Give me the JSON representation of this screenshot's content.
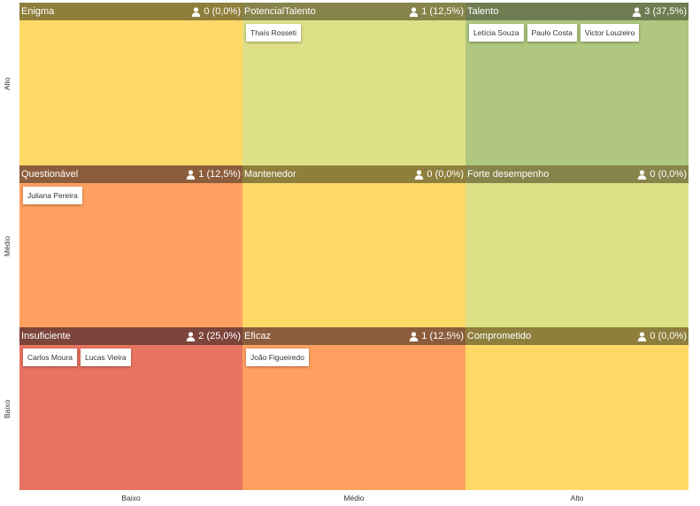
{
  "axes": {
    "y_labels": [
      "Alto",
      "Médio",
      "Baixo"
    ],
    "x_labels": [
      "Baixo",
      "Médio",
      "Alto"
    ]
  },
  "cells": [
    {
      "title": "Enigma",
      "count": "0 (0,0%)",
      "header_color": "#8f7f3d",
      "body_color": "#ffd966",
      "people": []
    },
    {
      "title": "PotencialTalento",
      "count": "1 (12,5%)",
      "header_color": "#86844a",
      "body_color": "#dde086",
      "people": [
        "Thaís Rosseti"
      ]
    },
    {
      "title": "Talento",
      "count": "3 (37,5%)",
      "header_color": "#6f7c51",
      "body_color": "#afc77e",
      "people": [
        "Letícia Souza",
        "Paulo Costa",
        "Victor Louzeiro"
      ]
    },
    {
      "title": "Questionável",
      "count": "1 (12,5%)",
      "header_color": "#8b5d3c",
      "body_color": "#ffa060",
      "people": [
        "Juliana Pereira"
      ]
    },
    {
      "title": "Mantenedor",
      "count": "0 (0,0%)",
      "header_color": "#8f7f3d",
      "body_color": "#ffd966",
      "people": []
    },
    {
      "title": "Forte desempenho",
      "count": "0 (0,0%)",
      "header_color": "#86844a",
      "body_color": "#dde086",
      "people": []
    },
    {
      "title": "Insuficiente",
      "count": "2 (25,0%)",
      "header_color": "#7c443b",
      "body_color": "#e87461",
      "people": [
        "Carlos Moura",
        "Lucas Vieira"
      ]
    },
    {
      "title": "Eficaz",
      "count": "1 (12,5%)",
      "header_color": "#8b5d3c",
      "body_color": "#ffa060",
      "people": [
        "João Figueiredo"
      ]
    },
    {
      "title": "Comprometido",
      "count": "0 (0,0%)",
      "header_color": "#8f7f3d",
      "body_color": "#ffd966",
      "people": []
    }
  ],
  "icons": {
    "count_icon": "person-icon"
  }
}
